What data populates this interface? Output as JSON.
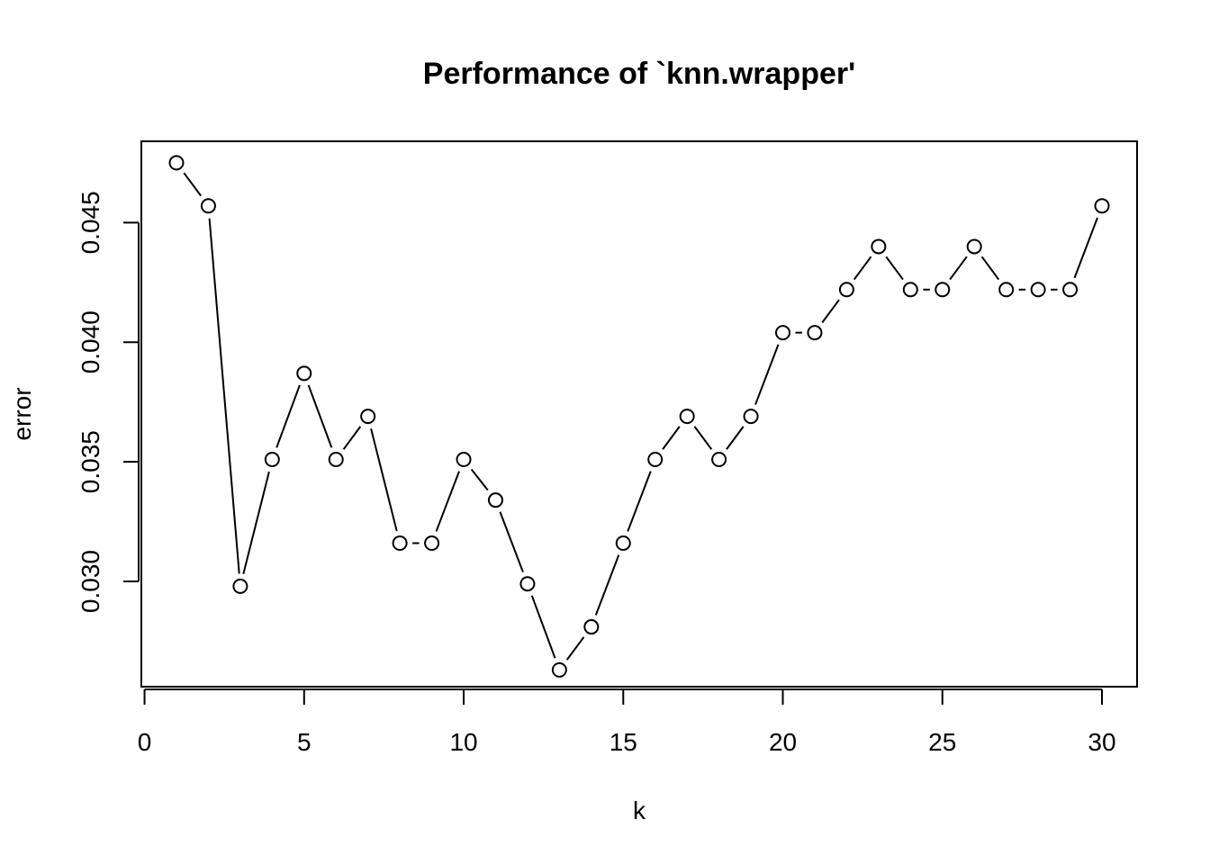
{
  "chart_data": {
    "type": "line",
    "title": "Performance of `knn.wrapper'",
    "xlabel": "k",
    "ylabel": "error",
    "xlim": [
      -0.1,
      31.1
    ],
    "ylim": [
      0.0256,
      0.0484
    ],
    "xticks": [
      0,
      5,
      10,
      15,
      20,
      25,
      30
    ],
    "yticks": [
      0.03,
      0.035,
      0.04,
      0.045
    ],
    "xtick_labels": [
      "0",
      "5",
      "10",
      "15",
      "20",
      "25",
      "30"
    ],
    "ytick_labels": [
      "0.030",
      "0.035",
      "0.040",
      "0.045"
    ],
    "grid": false,
    "legend": "none",
    "marker": "open-circle",
    "series": [
      {
        "x": [
          1,
          2,
          3,
          4,
          5,
          6,
          7,
          8,
          9,
          10,
          11,
          12,
          13,
          14,
          15,
          16,
          17,
          18,
          19,
          20,
          21,
          22,
          23,
          24,
          25,
          26,
          27,
          28,
          29,
          30
        ],
        "values": [
          0.0475,
          0.0457,
          0.0298,
          0.0351,
          0.0387,
          0.0351,
          0.0369,
          0.0316,
          0.0316,
          0.0351,
          0.0334,
          0.0299,
          0.0263,
          0.0281,
          0.0316,
          0.0351,
          0.0369,
          0.0351,
          0.0369,
          0.0404,
          0.0404,
          0.0422,
          0.044,
          0.0422,
          0.0422,
          0.044,
          0.0422,
          0.0422,
          0.0422,
          0.0457
        ]
      }
    ]
  }
}
